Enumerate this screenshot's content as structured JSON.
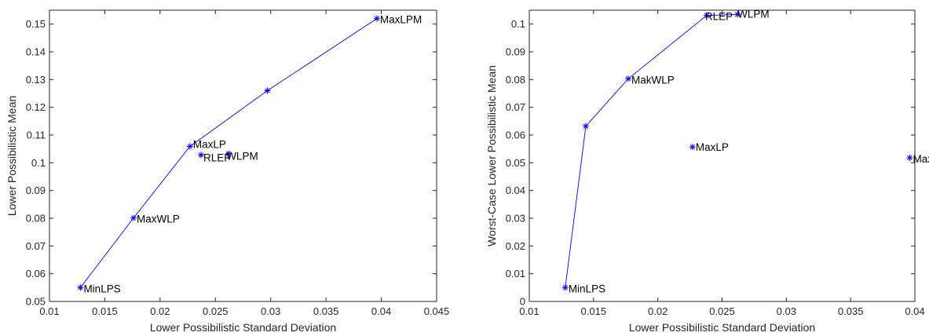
{
  "colors": {
    "line": "#0000ff",
    "marker": "#0000ff",
    "axis": "#262626",
    "text": "#000000"
  },
  "chart_data": [
    {
      "type": "line",
      "xlabel": "Lower Possibilistic Standard Deviation",
      "ylabel": "Lower Possibilistic Mean",
      "xlim": [
        0.01,
        0.045
      ],
      "ylim": [
        0.05,
        0.155
      ],
      "xticks": [
        0.01,
        0.015,
        0.02,
        0.025,
        0.03,
        0.035,
        0.04,
        0.045
      ],
      "xtick_labels": [
        "0.01",
        "0.015",
        "0.02",
        "0.025",
        "0.03",
        "0.035",
        "0.04",
        "0.045"
      ],
      "yticks": [
        0.05,
        0.06,
        0.07,
        0.08,
        0.09,
        0.1,
        0.11,
        0.12,
        0.13,
        0.14,
        0.15
      ],
      "ytick_labels": [
        "0.05",
        "0.06",
        "0.07",
        "0.08",
        "0.09",
        "0.1",
        "0.11",
        "0.12",
        "0.13",
        "0.14",
        "0.15"
      ],
      "grid": false,
      "frontier": {
        "x": [
          0.0128,
          0.0176,
          0.0227,
          0.0297,
          0.0396
        ],
        "y": [
          0.055,
          0.0801,
          0.1059,
          0.126,
          0.152
        ]
      },
      "points": [
        {
          "label": "MinLPS",
          "x": 0.0128,
          "y": 0.055
        },
        {
          "label": "MaxWLP",
          "x": 0.0176,
          "y": 0.0801
        },
        {
          "label": "MaxLP",
          "x": 0.0227,
          "y": 0.1059
        },
        {
          "label": "RLEP",
          "x": 0.0237,
          "y": 0.1028
        },
        {
          "label": "WLPM",
          "x": 0.0262,
          "y": 0.1033
        },
        {
          "label": "",
          "x": 0.0297,
          "y": 0.126
        },
        {
          "label": "MaxLPM",
          "x": 0.0396,
          "y": 0.152
        }
      ]
    },
    {
      "type": "line",
      "xlabel": "Lower Possibilistic Standard Deviation",
      "ylabel": "Worst-Case Lower Possibilistic Mean",
      "xlim": [
        0.01,
        0.04
      ],
      "ylim": [
        0,
        0.105
      ],
      "xticks": [
        0.01,
        0.015,
        0.02,
        0.025,
        0.03,
        0.035,
        0.04
      ],
      "xtick_labels": [
        "0.01",
        "0.015",
        "0.02",
        "0.025",
        "0.03",
        "0.035",
        "0.04"
      ],
      "yticks": [
        0,
        0.01,
        0.02,
        0.03,
        0.04,
        0.05,
        0.06,
        0.07,
        0.08,
        0.09,
        0.1
      ],
      "ytick_labels": [
        "0",
        "0.01",
        "0.02",
        "0.03",
        "0.04",
        "0.05",
        "0.06",
        "0.07",
        "0.08",
        "0.09",
        "0.1"
      ],
      "grid": false,
      "frontier": {
        "x": [
          0.0128,
          0.0144,
          0.0177,
          0.0238,
          0.0262
        ],
        "y": [
          0.005,
          0.0632,
          0.0803,
          0.1031,
          0.1035
        ]
      },
      "points": [
        {
          "label": "MinLPS",
          "x": 0.0128,
          "y": 0.005
        },
        {
          "label": "",
          "x": 0.0144,
          "y": 0.0632
        },
        {
          "label": "MakWLP",
          "x": 0.0177,
          "y": 0.0803
        },
        {
          "label": "RLEP",
          "x": 0.0238,
          "y": 0.1031
        },
        {
          "label": "WLPM",
          "x": 0.0262,
          "y": 0.1035
        },
        {
          "label": "MaxLP",
          "x": 0.0227,
          "y": 0.0557
        },
        {
          "label": "MaxLPM",
          "x": 0.0396,
          "y": 0.0518
        }
      ]
    }
  ]
}
